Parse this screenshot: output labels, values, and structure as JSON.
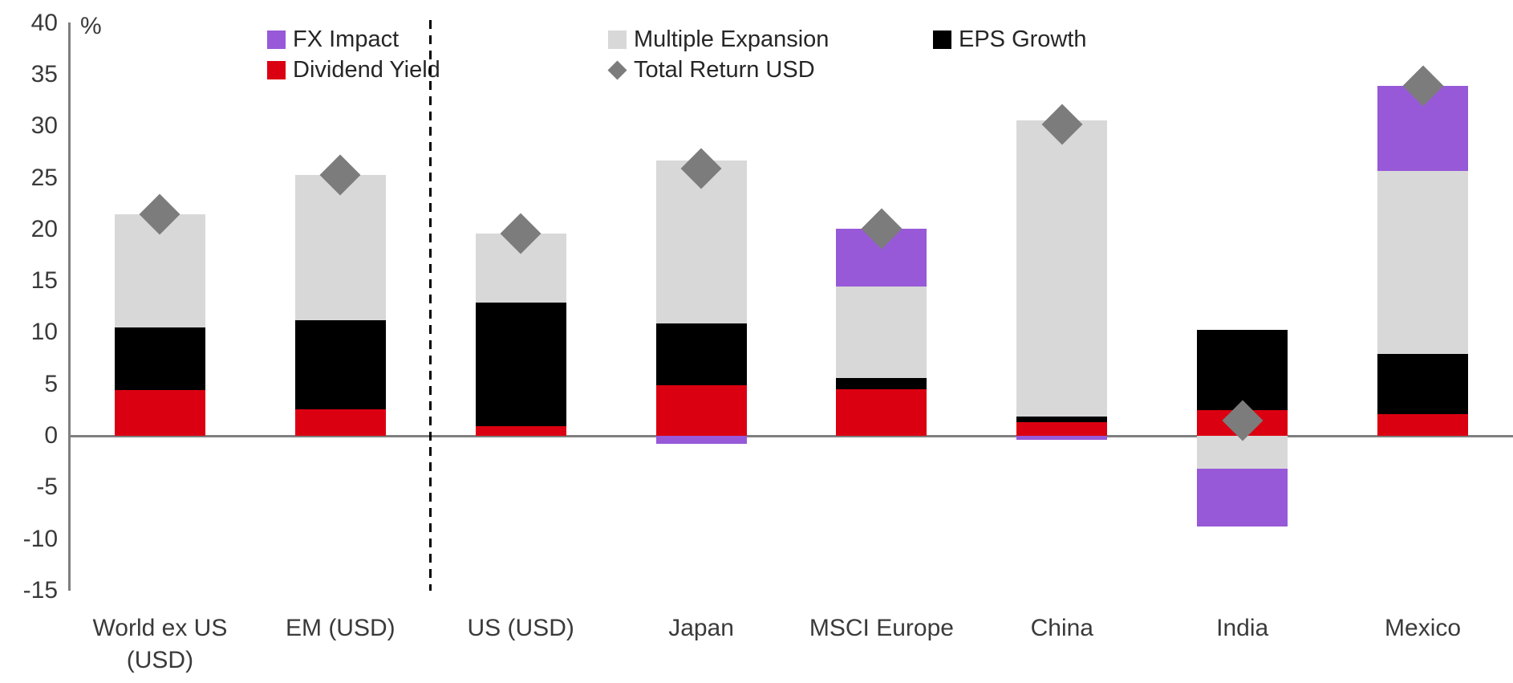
{
  "y_axis": {
    "unit_label": "%",
    "ticks": [
      40,
      35,
      30,
      25,
      20,
      15,
      10,
      5,
      0,
      -5,
      -10,
      -15
    ]
  },
  "legend": [
    {
      "label": "FX Impact",
      "marker": "square",
      "color": "#9759D8"
    },
    {
      "label": "Multiple Expansion",
      "marker": "square",
      "color": "#D8D8D8"
    },
    {
      "label": "EPS Growth",
      "marker": "square",
      "color": "#000000"
    },
    {
      "label": "Dividend Yield",
      "marker": "square",
      "color": "#DB0011"
    },
    {
      "label": "Total Return USD",
      "marker": "diamond",
      "color": "#7C7C7C"
    }
  ],
  "chart_data": {
    "type": "bar",
    "stacked": true,
    "categories": [
      "World ex US\n(USD)",
      "EM (USD)",
      "US (USD)",
      "Japan",
      "MSCI Europe",
      "China",
      "India",
      "Mexico"
    ],
    "series": [
      {
        "name": "Dividend Yield",
        "color": "#DB0011",
        "values": [
          4.4,
          2.6,
          0.9,
          4.9,
          4.5,
          1.3,
          2.5,
          2.1
        ]
      },
      {
        "name": "EPS Growth",
        "color": "#000000",
        "values": [
          6.1,
          8.6,
          12.0,
          6.0,
          1.1,
          0.6,
          7.8,
          5.8
        ]
      },
      {
        "name": "Multiple Expansion",
        "color": "#D8D8D8",
        "values": [
          11.0,
          14.1,
          6.7,
          15.8,
          8.9,
          28.7,
          -3.2,
          17.8
        ]
      },
      {
        "name": "FX Impact",
        "color": "#9759D8",
        "values": [
          0,
          0,
          0,
          -0.8,
          5.6,
          -0.4,
          -5.6,
          8.2
        ]
      }
    ],
    "markers": {
      "name": "Total Return USD",
      "color": "#7C7C7C",
      "values": [
        21.5,
        25.3,
        19.6,
        25.9,
        20.1,
        30.2,
        1.5,
        33.9
      ]
    },
    "ylabel": "%",
    "ylim": [
      -15,
      40
    ],
    "grid": false,
    "legend_position": "top",
    "x_group_separator_after": "EM (USD)"
  }
}
